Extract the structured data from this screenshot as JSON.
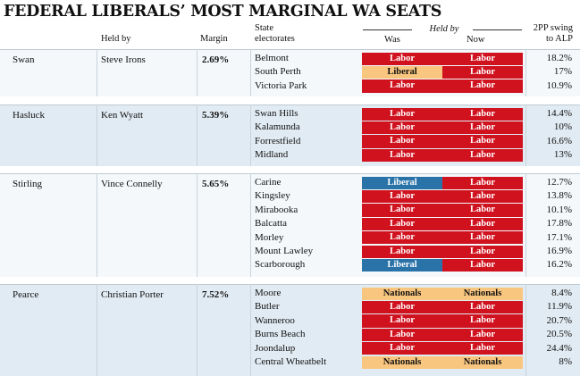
{
  "title": "FEDERAL LIBERALS’ MOST MARGINAL WA SEATS",
  "headers": {
    "held_by": "Held by",
    "margin": "Margin",
    "state_line1": "State",
    "state_line2": "electorates",
    "held_by_group": "Held by",
    "was": "Was",
    "now": "Now",
    "swing_line1": "2PP swing",
    "swing_line2": "to ALP"
  },
  "colors": {
    "labor": "#d0121f",
    "liberal": "#2a73a8",
    "nationals": "#f9c67f",
    "liberal_highlight": "#f9c67f"
  },
  "groups": [
    {
      "seat": "Swan",
      "member": "Steve Irons",
      "margin": "2.69%",
      "rows": [
        {
          "electorate": "Belmont",
          "was": "Labor",
          "now": "Labor",
          "swing": "18.2%"
        },
        {
          "electorate": "South Perth",
          "was": "Liberal",
          "now": "Labor",
          "swing": "17%",
          "was_style": "pale"
        },
        {
          "electorate": "Victoria Park",
          "was": "Labor",
          "now": "Labor",
          "swing": "10.9%"
        }
      ]
    },
    {
      "seat": "Hasluck",
      "member": "Ken Wyatt",
      "margin": "5.39%",
      "rows": [
        {
          "electorate": "Swan Hills",
          "was": "Labor",
          "now": "Labor",
          "swing": "14.4%"
        },
        {
          "electorate": "Kalamunda",
          "was": "Labor",
          "now": "Labor",
          "swing": "10%"
        },
        {
          "electorate": "Forrestfield",
          "was": "Labor",
          "now": "Labor",
          "swing": "16.6%"
        },
        {
          "electorate": "Midland",
          "was": "Labor",
          "now": "Labor",
          "swing": "13%"
        }
      ]
    },
    {
      "seat": "Stirling",
      "member": "Vince Connelly",
      "margin": "5.65%",
      "rows": [
        {
          "electorate": "Carine",
          "was": "Liberal",
          "now": "Labor",
          "swing": "12.7%"
        },
        {
          "electorate": "Kingsley",
          "was": "Labor",
          "now": "Labor",
          "swing": "13.8%"
        },
        {
          "electorate": "Mirabooka",
          "was": "Labor",
          "now": "Labor",
          "swing": "10.1%"
        },
        {
          "electorate": "Balcatta",
          "was": "Labor",
          "now": "Labor",
          "swing": "17.8%"
        },
        {
          "electorate": "Morley",
          "was": "Labor",
          "now": "Labor",
          "swing": "17.1%"
        },
        {
          "electorate": "Mount Lawley",
          "was": "Labor",
          "now": "Labor",
          "swing": "16.9%"
        },
        {
          "electorate": "Scarborough",
          "was": "Liberal",
          "now": "Labor",
          "swing": "16.2%"
        }
      ]
    },
    {
      "seat": "Pearce",
      "member": "Christian Porter",
      "margin": "7.52%",
      "rows": [
        {
          "electorate": "Moore",
          "was": "Nationals",
          "now": "Nationals",
          "swing": "8.4%"
        },
        {
          "electorate": "Butler",
          "was": "Labor",
          "now": "Labor",
          "swing": "11.9%"
        },
        {
          "electorate": "Wanneroo",
          "was": "Labor",
          "now": "Labor",
          "swing": "20.7%"
        },
        {
          "electorate": "Burns Beach",
          "was": "Labor",
          "now": "Labor",
          "swing": "20.5%"
        },
        {
          "electorate": "Joondalup",
          "was": "Labor",
          "now": "Labor",
          "swing": "24.4%"
        },
        {
          "electorate": "Central Wheatbelt",
          "was": "Nationals",
          "now": "Nationals",
          "swing": "8%"
        }
      ]
    }
  ]
}
